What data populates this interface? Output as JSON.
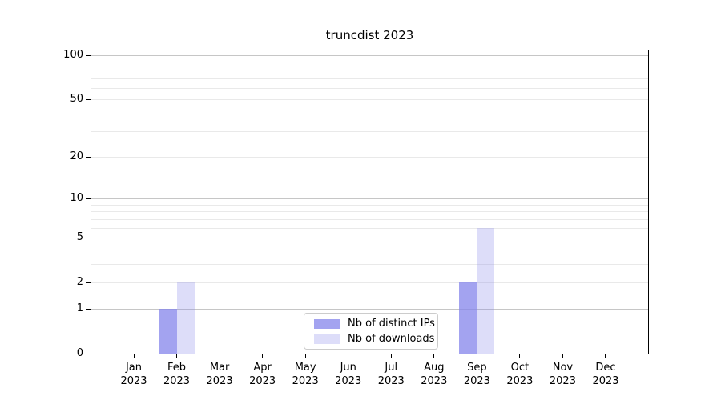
{
  "title": "truncdist 2023",
  "chart_data": {
    "type": "bar",
    "title": "truncdist 2023",
    "categories": [
      "Jan",
      "Feb",
      "Mar",
      "Apr",
      "May",
      "Jun",
      "Jul",
      "Aug",
      "Sep",
      "Oct",
      "Nov",
      "Dec"
    ],
    "category_year": "2023",
    "series": [
      {
        "name": "Nb of distinct IPs",
        "color": "rgba(132,132,235,0.75)",
        "values": [
          0,
          1,
          0,
          0,
          0,
          0,
          0,
          0,
          2,
          0,
          0,
          0
        ]
      },
      {
        "name": "Nb of downloads",
        "color": "rgba(132,132,235,0.28)",
        "values": [
          0,
          2,
          0,
          0,
          0,
          0,
          0,
          0,
          6,
          0,
          0,
          0
        ]
      }
    ],
    "y_axis": {
      "scale": "symlog (log1p)",
      "ticks": [
        0,
        1,
        2,
        5,
        10,
        20,
        50,
        100
      ],
      "gridlines_emphasized": [
        1,
        10,
        100
      ],
      "gridlines_light": [
        2,
        3,
        4,
        5,
        6,
        7,
        8,
        9,
        20,
        30,
        40,
        50,
        60,
        70,
        80,
        90
      ],
      "max": 100
    },
    "legend_position": "lower center",
    "grid": true,
    "colors": {
      "spine": "#000000",
      "grid_light": "#e9e9e9",
      "grid_emphasized": "#c6c6c6",
      "background": "#ffffff"
    }
  }
}
